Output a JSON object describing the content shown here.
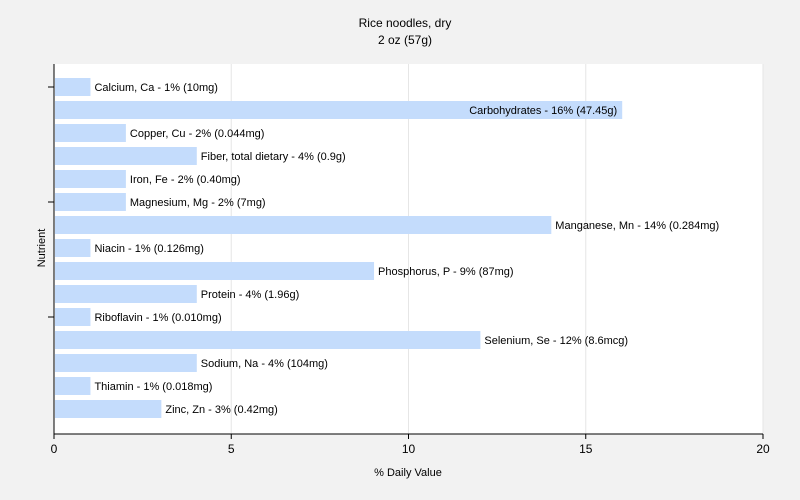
{
  "chart_data": {
    "type": "bar",
    "orientation": "horizontal",
    "title": "Rice noodles, dry",
    "subtitle": "2 oz (57g)",
    "xlabel": "% Daily Value",
    "ylabel": "Nutrient",
    "xlim": [
      0,
      20
    ],
    "xticks": [
      0,
      5,
      10,
      15,
      20
    ],
    "grid": true,
    "legend": "none",
    "bar_color": "#c4dcfc",
    "categories": [
      "Calcium, Ca - 1% (10mg)",
      "Carbohydrates - 16% (47.45g)",
      "Copper, Cu - 2% (0.044mg)",
      "Fiber, total dietary - 4% (0.9g)",
      "Iron, Fe - 2% (0.40mg)",
      "Magnesium, Mg - 2% (7mg)",
      "Manganese, Mn - 14% (0.284mg)",
      "Niacin - 1% (0.126mg)",
      "Phosphorus, P - 9% (87mg)",
      "Protein - 4% (1.96g)",
      "Riboflavin - 1% (0.010mg)",
      "Selenium, Se - 12% (8.6mcg)",
      "Sodium, Na - 4% (104mg)",
      "Thiamin - 1% (0.018mg)",
      "Zinc, Zn - 3% (0.42mg)"
    ],
    "values": [
      1,
      16,
      2,
      4,
      2,
      2,
      14,
      1,
      9,
      4,
      1,
      12,
      4,
      1,
      3
    ]
  }
}
